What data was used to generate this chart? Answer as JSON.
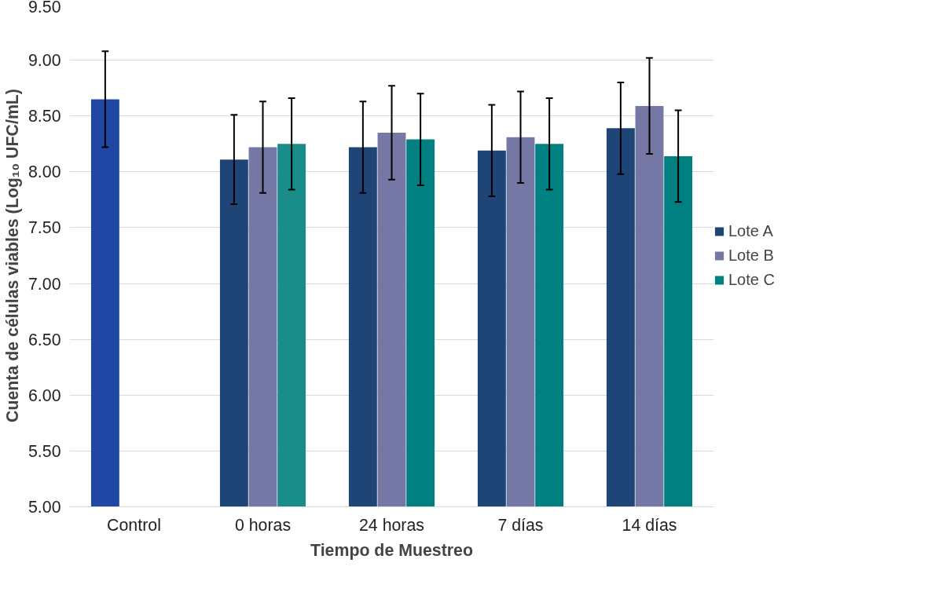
{
  "chart_data": {
    "type": "bar",
    "xlabel": "Tiempo de Muestreo",
    "ylabel": "Cuenta de células viables (Log₁₀ UFC/mL)",
    "categories": [
      "Control",
      "0 horas",
      "24 horas",
      "7 días",
      "14 días"
    ],
    "series": [
      {
        "name": "Lote A",
        "color": "#1f4576",
        "colors": [
          "#1f47a3",
          "#1f4576",
          "#1f4576",
          "#1f4576",
          "#1f4576"
        ],
        "values": [
          8.65,
          8.11,
          8.22,
          8.19,
          8.39
        ],
        "errors": [
          0.43,
          0.4,
          0.41,
          0.41,
          0.41
        ]
      },
      {
        "name": "Lote B",
        "color": "#7578a4",
        "values": [
          null,
          8.22,
          8.35,
          8.31,
          8.59
        ],
        "errors": [
          null,
          0.41,
          0.42,
          0.41,
          0.43
        ]
      },
      {
        "name": "Lote C",
        "color": "#008080",
        "colors": [
          null,
          "#1a8c8a",
          "#008080",
          "#008080",
          "#008080"
        ],
        "values": [
          null,
          8.25,
          8.29,
          8.25,
          8.14
        ],
        "errors": [
          null,
          0.41,
          0.41,
          0.41,
          0.41
        ]
      }
    ],
    "ylim": [
      5,
      9.5
    ],
    "yticks": [
      {
        "value": 5,
        "label": "5.00"
      },
      {
        "value": 5.5,
        "label": "5.50"
      },
      {
        "value": 6,
        "label": "6.00"
      },
      {
        "value": 6.5,
        "label": "6.50"
      },
      {
        "value": 7,
        "label": "7.00"
      },
      {
        "value": 7.5,
        "label": "7.50"
      },
      {
        "value": 8,
        "label": "8.00"
      },
      {
        "value": 8.5,
        "label": "8.50"
      },
      {
        "value": 9,
        "label": "9.00"
      },
      {
        "value": 9.5,
        "label": "9.50"
      }
    ],
    "grid": "y",
    "legend": "right"
  }
}
